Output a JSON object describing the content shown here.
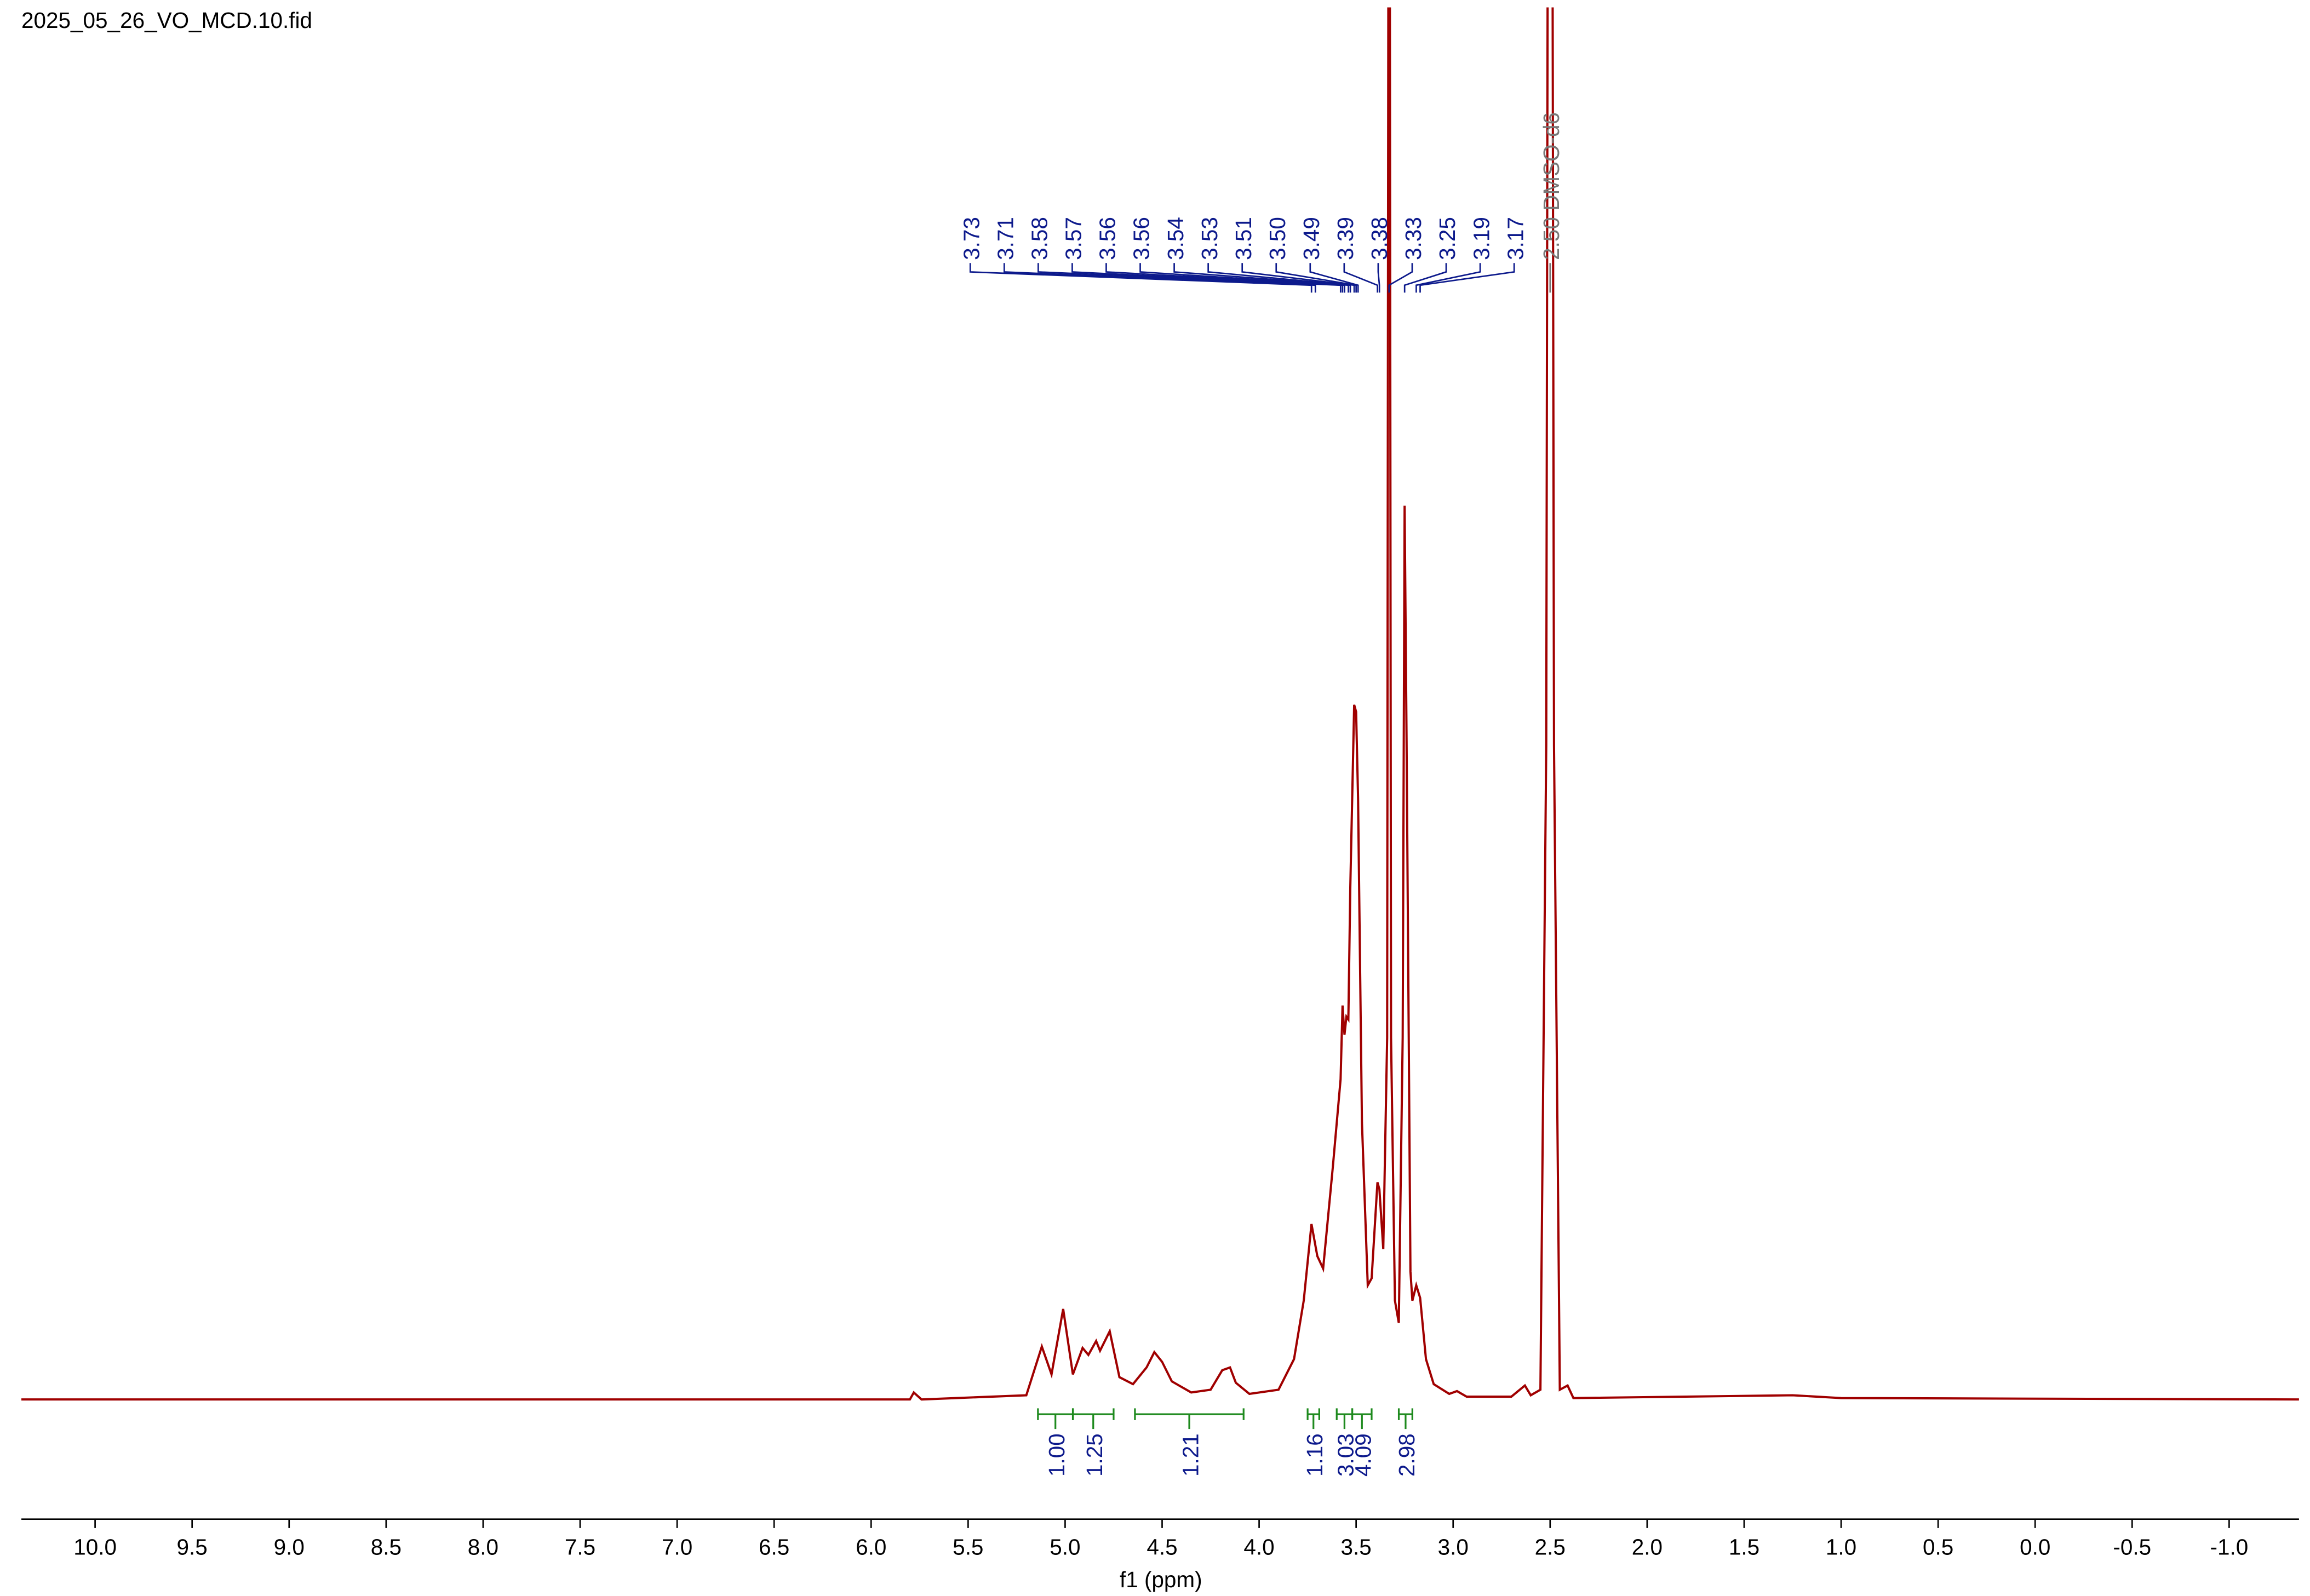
{
  "chart_data": {
    "type": "nmr",
    "title": "2025_05_26_VO_MCD.10.fid",
    "x_label": "f1 (ppm)",
    "color": "#a00000",
    "xlim": [
      10.38,
      -1.36
    ],
    "ylim": [
      0,
      100
    ],
    "xticks": [
      {
        "value": 10.0,
        "label": "10.0"
      },
      {
        "value": 9.5,
        "label": "9.5"
      },
      {
        "value": 9.0,
        "label": "9.0"
      },
      {
        "value": 8.5,
        "label": "8.5"
      },
      {
        "value": 8.0,
        "label": "8.0"
      },
      {
        "value": 7.5,
        "label": "7.5"
      },
      {
        "value": 7.0,
        "label": "7.0"
      },
      {
        "value": 6.5,
        "label": "6.5"
      },
      {
        "value": 6.0,
        "label": "6.0"
      },
      {
        "value": 5.5,
        "label": "5.5"
      },
      {
        "value": 5.0,
        "label": "5.0"
      },
      {
        "value": 4.5,
        "label": "4.5"
      },
      {
        "value": 4.0,
        "label": "4.0"
      },
      {
        "value": 3.5,
        "label": "3.5"
      },
      {
        "value": 3.0,
        "label": "3.0"
      },
      {
        "value": 2.5,
        "label": "2.5"
      },
      {
        "value": 2.0,
        "label": "2.0"
      },
      {
        "value": 1.5,
        "label": "1.5"
      },
      {
        "value": 1.0,
        "label": "1.0"
      },
      {
        "value": 0.5,
        "label": "0.5"
      },
      {
        "value": 0.0,
        "label": "0.0"
      },
      {
        "value": -0.5,
        "label": "-0.5"
      },
      {
        "value": -1.0,
        "label": "-1.0"
      }
    ],
    "x": [
      10.38,
      5.8,
      5.78,
      5.74,
      5.2,
      5.12,
      5.07,
      5.01,
      4.96,
      4.91,
      4.88,
      4.84,
      4.82,
      4.77,
      4.72,
      4.65,
      4.58,
      4.54,
      4.5,
      4.45,
      4.35,
      4.25,
      4.19,
      4.15,
      4.12,
      4.05,
      3.9,
      3.82,
      3.77,
      3.73,
      3.7,
      3.67,
      3.62,
      3.58,
      3.57,
      3.56,
      3.55,
      3.54,
      3.53,
      3.51,
      3.5,
      3.49,
      3.47,
      3.44,
      3.42,
      3.39,
      3.38,
      3.36,
      3.34,
      3.33,
      3.32,
      3.3,
      3.28,
      3.26,
      3.25,
      3.24,
      3.22,
      3.21,
      3.19,
      3.17,
      3.14,
      3.1,
      3.02,
      2.98,
      2.93,
      2.7,
      2.63,
      2.6,
      2.55,
      2.52,
      2.5,
      2.48,
      2.45,
      2.41,
      2.38,
      1.25,
      1.0,
      -1.36
    ],
    "values": [
      0,
      0,
      0.5,
      0,
      0.3,
      3.8,
      1.8,
      6.5,
      1.8,
      3.7,
      3.2,
      4.2,
      3.5,
      4.9,
      1.6,
      1.1,
      2.3,
      3.4,
      2.7,
      1.3,
      0.5,
      0.7,
      2.1,
      2.3,
      1.2,
      0.4,
      0.7,
      2.9,
      7.1,
      12.6,
      10.3,
      9.4,
      16.7,
      23,
      28.3,
      26.2,
      27.5,
      27.3,
      36.8,
      49.9,
      49.4,
      43.2,
      19.9,
      8.2,
      8.7,
      15.6,
      15.1,
      10.8,
      26,
      150,
      26,
      7.1,
      5.5,
      26,
      64.2,
      47.5,
      9.2,
      7.1,
      8.2,
      7.3,
      2.9,
      1.1,
      0.4,
      0.6,
      0.2,
      0.2,
      1.0,
      0.3,
      0.7,
      47,
      200,
      47,
      0.7,
      1.0,
      0.1,
      0.3,
      0.1,
      0
    ],
    "peaks": [
      {
        "value": 3.73,
        "label": "3.73"
      },
      {
        "value": 3.71,
        "label": "3.71"
      },
      {
        "value": 3.58,
        "label": "3.58"
      },
      {
        "value": 3.57,
        "label": "3.57"
      },
      {
        "value": 3.56,
        "label": "3.56"
      },
      {
        "value": 3.56,
        "label": "3.56"
      },
      {
        "value": 3.54,
        "label": "3.54"
      },
      {
        "value": 3.53,
        "label": "3.53"
      },
      {
        "value": 3.51,
        "label": "3.51"
      },
      {
        "value": 3.5,
        "label": "3.50"
      },
      {
        "value": 3.49,
        "label": "3.49"
      },
      {
        "value": 3.39,
        "label": "3.39"
      },
      {
        "value": 3.38,
        "label": "3.38"
      },
      {
        "value": 3.33,
        "label": "3.33"
      },
      {
        "value": 3.25,
        "label": "3.25"
      },
      {
        "value": 3.19,
        "label": "3.19"
      },
      {
        "value": 3.17,
        "label": "3.17"
      }
    ],
    "solvent": {
      "value": 2.5,
      "label": "2.50 DMSO-d6"
    },
    "integrals": [
      {
        "from": 5.14,
        "to": 4.96,
        "label": "1.00"
      },
      {
        "from": 4.96,
        "to": 4.75,
        "label": "1.25"
      },
      {
        "from": 4.64,
        "to": 4.08,
        "label": "1.21"
      },
      {
        "from": 3.75,
        "to": 3.69,
        "label": "1.16"
      },
      {
        "from": 3.6,
        "to": 3.52,
        "label": "3.03"
      },
      {
        "from": 3.52,
        "to": 3.42,
        "label": "4.09"
      },
      {
        "from": 3.28,
        "to": 3.21,
        "label": "2.98"
      }
    ]
  }
}
